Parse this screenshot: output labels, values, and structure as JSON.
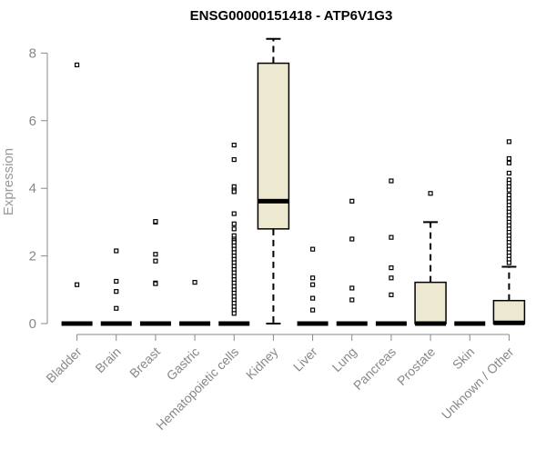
{
  "chart_data": {
    "type": "boxplot",
    "title": "ENSG00000151418 - ATP6V1G3",
    "xlabel": "",
    "ylabel": "Expression",
    "ylim": [
      0,
      8.4
    ],
    "yticks": [
      0,
      2,
      4,
      6,
      8
    ],
    "grid": false,
    "legend": "none",
    "box_fill": "#ede8d0",
    "axis_text_color": "#888888",
    "categories": [
      "Bladder",
      "Brain",
      "Breast",
      "Gastric",
      "Hematopoietic cells",
      "Kidney",
      "Liver",
      "Lung",
      "Pancreas",
      "Prostate",
      "Skin",
      "Unknown / Other"
    ],
    "boxes": [
      {
        "category": "Bladder",
        "min": 0,
        "q1": 0,
        "median": 0,
        "q3": 0,
        "max": 0,
        "outliers": [
          7.65,
          1.15
        ]
      },
      {
        "category": "Brain",
        "min": 0,
        "q1": 0,
        "median": 0,
        "q3": 0,
        "max": 0,
        "outliers": [
          2.15,
          1.25,
          0.95,
          0.45
        ]
      },
      {
        "category": "Breast",
        "min": 0,
        "q1": 0,
        "median": 0,
        "q3": 0,
        "max": 0,
        "outliers": [
          3.0,
          3.02,
          2.05,
          1.85,
          1.2,
          1.18
        ]
      },
      {
        "category": "Gastric",
        "min": 0,
        "q1": 0,
        "median": 0,
        "q3": 0,
        "max": 0,
        "outliers": [
          1.22
        ]
      },
      {
        "category": "Hematopoietic cells",
        "min": 0,
        "q1": 0,
        "median": 0,
        "q3": 0,
        "max": 0,
        "outliers": [
          5.28,
          4.85,
          4.05,
          3.95,
          3.9,
          3.25,
          2.95,
          2.8,
          2.6,
          2.5,
          2.45,
          2.4,
          2.3,
          2.2,
          2.1,
          2.0,
          1.9,
          1.8,
          1.7,
          1.6,
          1.5,
          1.4,
          1.3,
          1.2,
          1.1,
          1.0,
          0.9,
          0.8,
          0.7,
          0.6,
          0.5,
          0.4,
          0.3
        ]
      },
      {
        "category": "Kidney",
        "min": 0,
        "q1": 2.8,
        "median": 3.62,
        "q3": 7.7,
        "max": 8.42,
        "outliers": []
      },
      {
        "category": "Liver",
        "min": 0,
        "q1": 0,
        "median": 0,
        "q3": 0,
        "max": 0,
        "outliers": [
          2.2,
          1.35,
          1.15,
          0.75,
          0.4
        ]
      },
      {
        "category": "Lung",
        "min": 0,
        "q1": 0,
        "median": 0,
        "q3": 0,
        "max": 0,
        "outliers": [
          3.62,
          2.5,
          1.05,
          0.7
        ]
      },
      {
        "category": "Pancreas",
        "min": 0,
        "q1": 0,
        "median": 0,
        "q3": 0,
        "max": 0,
        "outliers": [
          4.22,
          2.55,
          1.65,
          1.35,
          0.85
        ]
      },
      {
        "category": "Prostate",
        "min": 0,
        "q1": 0,
        "median": 0,
        "q3": 1.22,
        "max": 3.0,
        "outliers": [
          3.85
        ]
      },
      {
        "category": "Skin",
        "min": 0,
        "q1": 0,
        "median": 0,
        "q3": 0,
        "max": 0,
        "outliers": []
      },
      {
        "category": "Unknown / Other",
        "min": 0,
        "q1": 0,
        "median": 0.02,
        "q3": 0.68,
        "max": 1.68,
        "outliers": [
          5.38,
          4.88,
          4.75,
          4.45,
          4.25,
          4.15,
          4.05,
          3.95,
          3.8,
          3.7,
          3.6,
          3.5,
          3.4,
          3.3,
          3.2,
          3.1,
          3.0,
          2.9,
          2.8,
          2.7,
          2.6,
          2.5,
          2.4,
          2.3,
          2.2,
          2.1,
          2.0,
          1.9,
          1.8
        ]
      }
    ]
  }
}
